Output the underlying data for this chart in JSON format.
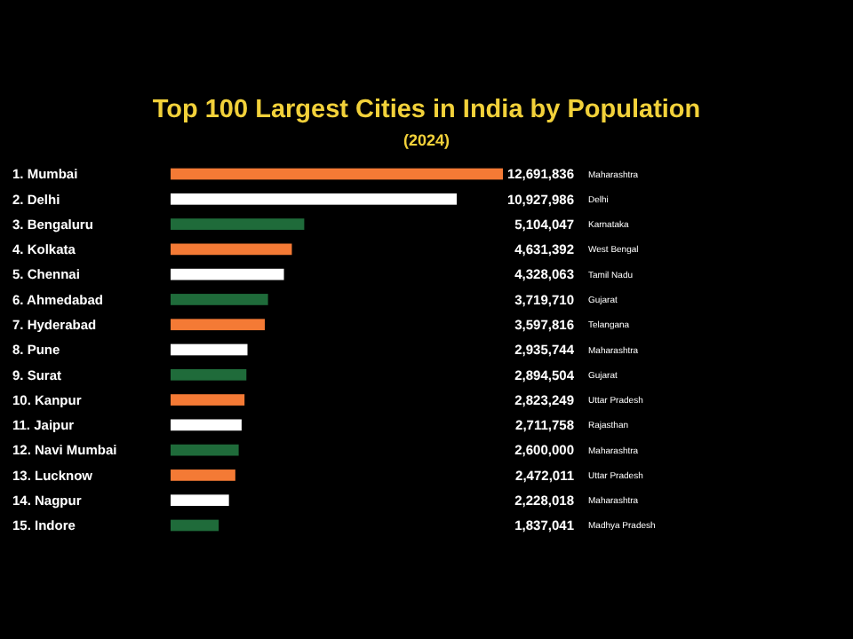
{
  "chart_data": {
    "type": "bar",
    "orientation": "horizontal",
    "title": "Top 100 Largest Cities in India by Population",
    "subtitle": "(2024)",
    "categories": [
      "1. Mumbai",
      "2. Delhi",
      "3. Bengaluru",
      "4. Kolkata",
      "5. Chennai",
      "6. Ahmedabad",
      "7. Hyderabad",
      "8. Pune",
      "9. Surat",
      "10. Kanpur",
      "11. Jaipur",
      "12. Navi Mumbai",
      "13. Lucknow",
      "14. Nagpur",
      "15. Indore"
    ],
    "values": [
      12691836,
      10927986,
      5104047,
      4631392,
      4328063,
      3719710,
      3597816,
      2935744,
      2894504,
      2823249,
      2711758,
      2600000,
      2472011,
      2228018,
      1837041
    ],
    "colors": [
      "#f47a35",
      "#ffffff",
      "#1f6b3a",
      "#f47a35",
      "#ffffff",
      "#1f6b3a",
      "#f47a35",
      "#ffffff",
      "#1f6b3a",
      "#f47a35",
      "#ffffff",
      "#1f6b3a",
      "#f47a35",
      "#ffffff",
      "#1f6b3a"
    ],
    "value_labels": [
      "12,691,836",
      "10,927,986",
      "5,104,047",
      "4,631,392",
      "4,328,063",
      "3,719,710",
      "3,597,816",
      "2,935,744",
      "2,894,504",
      "2,823,249",
      "2,711,758",
      "2,600,000",
      "2,472,011",
      "2,228,018",
      "1,837,041"
    ],
    "annotations": [
      "Maharashtra",
      "Delhi",
      "Karnataka",
      "West Bengal",
      "Tamil Nadu",
      "Gujarat",
      "Telangana",
      "Maharashtra",
      "Gujarat",
      "Uttar Pradesh",
      "Rajasthan",
      "Maharashtra",
      "Uttar Pradesh",
      "Maharashtra",
      "Madhya Pradesh"
    ]
  }
}
